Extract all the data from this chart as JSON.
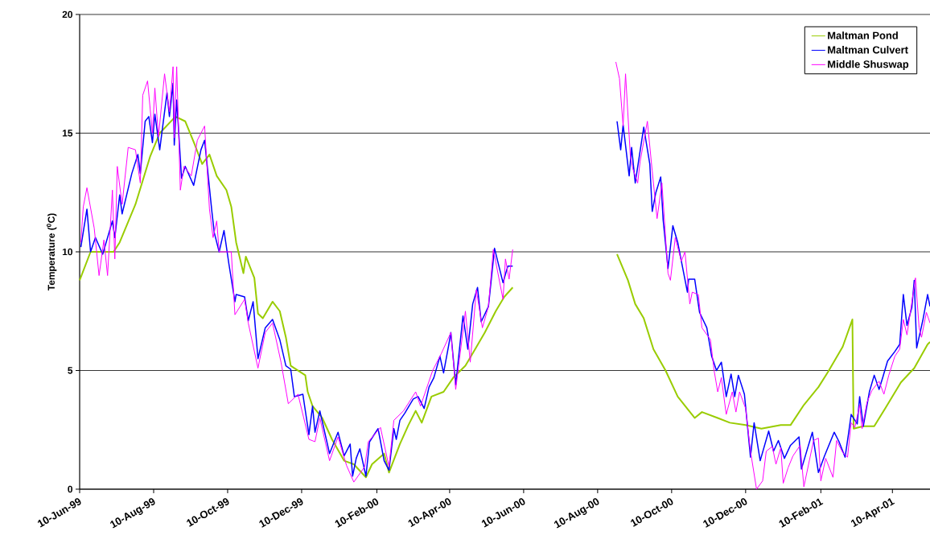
{
  "chart_data": {
    "type": "line",
    "ylabel": "Temperature ($^{0}$C)",
    "xlim": [
      "1999-06-10",
      "2001-05-11"
    ],
    "ylim": [
      0,
      20
    ],
    "yticks": [
      0,
      5,
      10,
      15,
      20
    ],
    "xticks": [
      {
        "value": "1999-06-10",
        "label": "10-Jun-99"
      },
      {
        "value": "1999-08-10",
        "label": "10-Aug-99"
      },
      {
        "value": "1999-10-10",
        "label": "10-Oct-99"
      },
      {
        "value": "1999-12-10",
        "label": "10-Dec-99"
      },
      {
        "value": "2000-02-10",
        "label": "10-Feb-00"
      },
      {
        "value": "2000-04-10",
        "label": "10-Apr-00"
      },
      {
        "value": "2000-06-10",
        "label": "10-Jun-00"
      },
      {
        "value": "2000-08-10",
        "label": "10-Aug-00"
      },
      {
        "value": "2000-10-10",
        "label": "10-Oct-00"
      },
      {
        "value": "2000-12-10",
        "label": "10-Dec-00"
      },
      {
        "value": "2001-02-10",
        "label": "10-Feb-01"
      },
      {
        "value": "2001-04-10",
        "label": "10-Apr-01"
      }
    ],
    "grid": "y",
    "legend": "top right",
    "marker": "none",
    "line_style": "solid",
    "series": [
      {
        "name": "Maltman Pond",
        "color": "#99cc00",
        "x": [
          "1999-06-10",
          "1999-06-19",
          "1999-07-08",
          "1999-07-13",
          "1999-07-26",
          "1999-08-07",
          "1999-08-15",
          "1999-08-28",
          "1999-09-05",
          "1999-09-13",
          "1999-09-19",
          "1999-09-25",
          "1999-10-01",
          "1999-10-09",
          "1999-10-13",
          "1999-10-17",
          "1999-10-23",
          "1999-10-25",
          "1999-11-01",
          "1999-11-04",
          "1999-11-08",
          "1999-11-16",
          "1999-11-22",
          "1999-11-27",
          "1999-12-01",
          "1999-12-13",
          "1999-12-15",
          "1999-12-19",
          "1999-12-27",
          "2000-01-04",
          "2000-01-14",
          "2000-01-22",
          "2000-02-01",
          "2000-02-06",
          "2000-02-16",
          "2000-02-20",
          "2000-02-29",
          "2000-03-07",
          "2000-03-13",
          "2000-03-18",
          "2000-03-26",
          "2000-04-05",
          "2000-04-13",
          "2000-04-23",
          "2000-05-01",
          "2000-05-09",
          "2000-05-18",
          "2000-05-25",
          "2000-06-01",
          "2000-07-15",
          "2000-08-26",
          "2000-09-04",
          "2000-09-10",
          "2000-09-17",
          "2000-09-25",
          "2000-10-05",
          "2000-10-15",
          "2000-10-29",
          "2000-11-04",
          "2000-11-17",
          "2000-11-27",
          "2000-12-10",
          "2000-12-23",
          "2001-01-08",
          "2001-01-16",
          "2001-01-27",
          "2001-02-08",
          "2001-02-16",
          "2001-02-28",
          "2001-03-08",
          "2001-03-09",
          "2001-03-17",
          "2001-03-26",
          "2001-04-04",
          "2001-04-17",
          "2001-04-28",
          "2001-05-09",
          "2001-05-11"
        ],
        "values": [
          8.8,
          10.0,
          10.0,
          10.4,
          12.0,
          14.0,
          15.0,
          15.7,
          15.5,
          14.5,
          13.7,
          14.1,
          13.2,
          12.6,
          11.9,
          10.4,
          9.1,
          9.8,
          8.9,
          7.4,
          7.2,
          7.9,
          7.5,
          6.4,
          5.2,
          4.8,
          4.1,
          3.5,
          3.0,
          2.1,
          1.2,
          1.05,
          0.5,
          1.05,
          1.5,
          0.7,
          1.9,
          2.7,
          3.3,
          2.8,
          3.9,
          4.1,
          4.7,
          5.2,
          5.9,
          6.6,
          7.5,
          8.1,
          8.5,
          null,
          9.9,
          8.8,
          7.8,
          7.2,
          5.9,
          5.0,
          3.9,
          3.0,
          3.25,
          3.0,
          2.8,
          2.7,
          2.55,
          2.7,
          2.7,
          3.55,
          4.3,
          4.95,
          6.0,
          7.15,
          2.55,
          2.65,
          2.65,
          3.4,
          4.5,
          5.1,
          6.1,
          6.2
        ]
      },
      {
        "name": "Maltman Culvert",
        "color": "#0000ff",
        "x": [
          "1999-06-11",
          "1999-06-16",
          "1999-06-19",
          "1999-06-23",
          "1999-06-29",
          "1999-07-07",
          "1999-07-09",
          "1999-07-13",
          "1999-07-15",
          "1999-07-23",
          "1999-07-28",
          "1999-07-30",
          "1999-08-03",
          "1999-08-06",
          "1999-08-09",
          "1999-08-11",
          "1999-08-15",
          "1999-08-21",
          "1999-08-23",
          "1999-08-26",
          "1999-08-27",
          "1999-08-29",
          "1999-09-02",
          "1999-09-05",
          "1999-09-12",
          "1999-09-18",
          "1999-09-21",
          "1999-09-27",
          "1999-09-29",
          "1999-10-03",
          "1999-10-07",
          "1999-10-11",
          "1999-10-16",
          "1999-10-17",
          "1999-10-24",
          "1999-10-27",
          "1999-10-31",
          "1999-11-04",
          "1999-11-10",
          "1999-11-16",
          "1999-11-22",
          "1999-11-27",
          "1999-12-01",
          "1999-12-04",
          "1999-12-11",
          "1999-12-16",
          "1999-12-19",
          "1999-12-21",
          "1999-12-25",
          "2000-01-02",
          "2000-01-09",
          "2000-01-14",
          "2000-01-19",
          "2000-01-21",
          "2000-01-24",
          "2000-01-27",
          "2000-02-01",
          "2000-02-04",
          "2000-02-11",
          "2000-02-16",
          "2000-02-20",
          "2000-02-24",
          "2000-02-26",
          "2000-02-29",
          "2000-03-04",
          "2000-03-11",
          "2000-03-15",
          "2000-03-20",
          "2000-03-24",
          "2000-03-28",
          "2000-04-02",
          "2000-04-05",
          "2000-04-09",
          "2000-04-11",
          "2000-04-15",
          "2000-04-21",
          "2000-04-25",
          "2000-04-29",
          "2000-05-03",
          "2000-05-06",
          "2000-05-12",
          "2000-05-17",
          "2000-05-24",
          "2000-05-28",
          "2000-06-01",
          "2000-07-15",
          "2000-08-26",
          "2000-08-29",
          "2000-08-31",
          "2000-09-05",
          "2000-09-07",
          "2000-09-10",
          "2000-09-17",
          "2000-09-22",
          "2000-09-24",
          "2000-09-27",
          "2000-10-01",
          "2000-10-03",
          "2000-10-07",
          "2000-10-11",
          "2000-10-15",
          "2000-10-23",
          "2000-10-24",
          "2000-10-29",
          "2000-11-02",
          "2000-11-08",
          "2000-11-12",
          "2000-11-16",
          "2000-11-20",
          "2000-11-24",
          "2000-11-28",
          "2000-12-01",
          "2000-12-04",
          "2000-12-09",
          "2000-12-14",
          "2000-12-17",
          "2000-12-22",
          "2000-12-29",
          "2001-01-02",
          "2001-01-06",
          "2001-01-11",
          "2001-01-16",
          "2001-01-23",
          "2001-01-25",
          "2001-02-03",
          "2001-02-08",
          "2001-02-13",
          "2001-02-21",
          "2001-02-25",
          "2001-03-02",
          "2001-03-05",
          "2001-03-07",
          "2001-03-12",
          "2001-03-14",
          "2001-03-17",
          "2001-03-22",
          "2001-03-26",
          "2001-03-30",
          "2001-04-02",
          "2001-04-06",
          "2001-04-12",
          "2001-04-16",
          "2001-04-19",
          "2001-04-22",
          "2001-04-26",
          "2001-04-28",
          "2001-04-30",
          "2001-05-05",
          "2001-05-09",
          "2001-05-11"
        ],
        "values": [
          10.2,
          11.8,
          10.0,
          10.6,
          9.9,
          11.3,
          10.6,
          12.4,
          11.6,
          13.3,
          14.1,
          13.3,
          15.5,
          15.7,
          14.6,
          15.8,
          14.3,
          16.7,
          15.7,
          17.1,
          14.5,
          16.4,
          13.1,
          13.6,
          12.8,
          14.3,
          14.7,
          11.7,
          10.8,
          10.0,
          10.9,
          9.5,
          7.9,
          8.2,
          8.1,
          7.1,
          7.9,
          5.5,
          6.8,
          7.15,
          6.3,
          5.2,
          5.05,
          3.9,
          4.0,
          2.3,
          3.5,
          2.4,
          3.3,
          1.5,
          2.4,
          1.4,
          1.9,
          0.55,
          1.3,
          1.7,
          0.55,
          2.0,
          2.55,
          1.2,
          0.8,
          2.55,
          2.1,
          2.9,
          3.2,
          3.8,
          3.9,
          3.4,
          4.3,
          4.7,
          5.6,
          4.9,
          6.0,
          6.6,
          4.4,
          7.3,
          5.9,
          7.8,
          8.5,
          7.05,
          7.7,
          10.15,
          8.7,
          9.4,
          9.4,
          null,
          15.5,
          14.3,
          15.35,
          13.2,
          14.4,
          12.9,
          15.25,
          13.7,
          11.7,
          12.5,
          13.15,
          11.35,
          9.3,
          11.1,
          10.4,
          8.3,
          8.85,
          8.85,
          7.45,
          6.8,
          5.6,
          5.0,
          5.35,
          3.9,
          4.85,
          3.9,
          4.8,
          4.0,
          1.35,
          2.8,
          1.2,
          2.45,
          1.6,
          2.05,
          1.3,
          1.85,
          2.2,
          0.85,
          2.4,
          0.7,
          1.4,
          2.4,
          2.0,
          1.35,
          2.4,
          3.15,
          2.75,
          3.9,
          2.65,
          4.1,
          4.8,
          4.2,
          4.7,
          5.4,
          5.8,
          6.1,
          8.2,
          6.9,
          7.65,
          8.8,
          5.95,
          7.1,
          8.2,
          7.7
        ]
      },
      {
        "name": "Middle Shuswap",
        "color": "#ff00ff",
        "x": [
          "1999-06-11",
          "1999-06-13",
          "1999-06-16",
          "1999-06-22",
          "1999-06-26",
          "1999-06-30",
          "1999-07-03",
          "1999-07-07",
          "1999-07-09",
          "1999-07-11",
          "1999-07-15",
          "1999-07-19",
          "1999-07-20",
          "1999-07-26",
          "1999-07-30",
          "1999-08-01",
          "1999-08-05",
          "1999-08-09",
          "1999-08-11",
          "1999-08-14",
          "1999-08-19",
          "1999-08-23",
          "1999-08-26",
          "1999-08-27",
          "1999-08-29",
          "1999-09-01",
          "1999-09-04",
          "1999-09-10",
          "1999-09-15",
          "1999-09-21",
          "1999-09-25",
          "1999-09-28",
          "1999-10-01",
          "1999-10-03",
          "1999-10-13",
          "1999-10-16",
          "1999-10-24",
          "1999-10-27",
          "1999-11-04",
          "1999-11-10",
          "1999-11-16",
          "1999-11-23",
          "1999-11-29",
          "1999-12-07",
          "1999-12-16",
          "1999-12-21",
          "1999-12-25",
          "2000-01-02",
          "2000-01-09",
          "2000-01-16",
          "2000-01-22",
          "2000-01-31",
          "2000-02-03",
          "2000-02-13",
          "2000-02-20",
          "2000-02-24",
          "2000-03-03",
          "2000-03-13",
          "2000-03-17",
          "2000-03-27",
          "2000-04-03",
          "2000-04-11",
          "2000-04-15",
          "2000-04-23",
          "2000-04-27",
          "2000-05-02",
          "2000-05-07",
          "2000-05-12",
          "2000-05-16",
          "2000-05-24",
          "2000-05-26",
          "2000-05-29",
          "2000-06-01",
          "2000-07-15",
          "2000-08-25",
          "2000-08-28",
          "2000-08-31",
          "2000-09-02",
          "2000-09-06",
          "2000-09-08",
          "2000-09-12",
          "2000-09-14",
          "2000-09-20",
          "2000-09-24",
          "2000-09-28",
          "2000-10-02",
          "2000-10-07",
          "2000-10-09",
          "2000-10-13",
          "2000-10-18",
          "2000-10-21",
          "2000-10-25",
          "2000-10-27",
          "2000-11-01",
          "2000-11-04",
          "2000-11-11",
          "2000-11-14",
          "2000-11-17",
          "2000-11-20",
          "2000-11-24",
          "2000-11-29",
          "2000-12-02",
          "2000-12-05",
          "2000-12-10",
          "2000-12-14",
          "2000-12-19",
          "2000-12-24",
          "2000-12-27",
          "2001-01-01",
          "2001-01-04",
          "2001-01-08",
          "2001-01-10",
          "2001-01-14",
          "2001-01-18",
          "2001-01-24",
          "2001-01-27",
          "2001-02-04",
          "2001-02-08",
          "2001-02-10",
          "2001-02-14",
          "2001-02-20",
          "2001-02-23",
          "2001-02-28",
          "2001-03-04",
          "2001-03-07",
          "2001-03-10",
          "2001-03-14",
          "2001-03-16",
          "2001-03-20",
          "2001-03-24",
          "2001-03-30",
          "2001-04-03",
          "2001-04-07",
          "2001-04-12",
          "2001-04-16",
          "2001-04-19",
          "2001-04-22",
          "2001-04-29",
          "2001-05-02",
          "2001-05-04",
          "2001-05-08",
          "2001-05-11"
        ],
        "values": [
          10.4,
          11.9,
          12.7,
          11.0,
          9.0,
          10.5,
          9.0,
          12.6,
          9.7,
          13.6,
          12.0,
          13.9,
          14.4,
          14.3,
          12.9,
          16.6,
          17.2,
          15.0,
          16.9,
          14.85,
          17.5,
          15.9,
          17.8,
          14.8,
          17.8,
          12.6,
          13.6,
          13.2,
          14.7,
          15.3,
          11.8,
          10.6,
          11.3,
          10.0,
          10.0,
          7.35,
          8.0,
          7.0,
          5.1,
          6.6,
          7.0,
          5.35,
          3.6,
          4.0,
          2.1,
          2.0,
          3.0,
          1.2,
          2.2,
          1.0,
          0.3,
          0.95,
          2.0,
          2.6,
          0.95,
          2.9,
          3.3,
          4.1,
          3.5,
          5.0,
          5.7,
          6.6,
          4.2,
          7.5,
          5.35,
          8.4,
          6.8,
          7.7,
          10.1,
          8.0,
          9.7,
          8.85,
          10.1,
          null,
          18.0,
          17.3,
          15.3,
          17.5,
          14.0,
          13.5,
          12.9,
          13.8,
          15.5,
          13.4,
          11.4,
          12.9,
          9.1,
          8.8,
          10.6,
          9.6,
          10.0,
          7.8,
          8.3,
          8.2,
          6.8,
          6.3,
          5.0,
          4.1,
          4.7,
          3.15,
          4.1,
          3.25,
          4.1,
          3.4,
          1.6,
          0.0,
          0.35,
          1.6,
          1.8,
          1.05,
          1.75,
          0.25,
          0.9,
          1.4,
          1.85,
          0.1,
          2.05,
          2.15,
          0.35,
          1.3,
          0.5,
          2.05,
          1.55,
          1.35,
          2.8,
          2.6,
          3.55,
          2.55,
          3.65,
          4.15,
          4.55,
          4.0,
          4.8,
          5.6,
          5.9,
          7.15,
          6.5,
          8.9,
          6.8,
          6.4,
          7.45,
          7.0
        ]
      }
    ]
  }
}
